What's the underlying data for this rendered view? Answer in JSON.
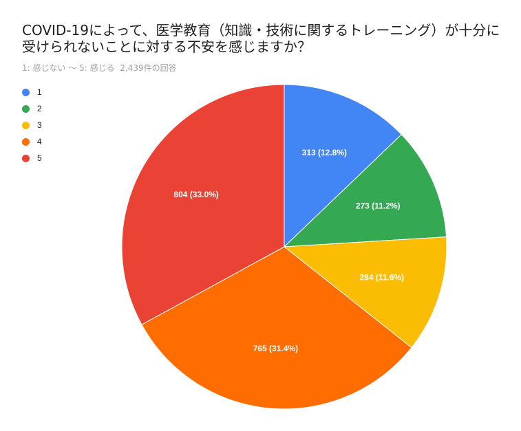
{
  "chart_data": {
    "type": "pie",
    "title": "COVID-19によって、医学教育（知識・技術に関するトレーニング）が十分に受けられないことに対する不安を感じますか？",
    "subtitle": "1: 感じない 〜 5: 感じる",
    "response_count": "2,439件の回答",
    "categories": [
      "1",
      "2",
      "3",
      "4",
      "5"
    ],
    "values": [
      313,
      273,
      284,
      765,
      804
    ],
    "percent_labels": [
      "12.8%",
      "11.2%",
      "11.6%",
      "31.4%",
      "33.0%"
    ],
    "colors": [
      "#4285f4",
      "#34a853",
      "#fbbc04",
      "#ff6d01",
      "#ea4335"
    ],
    "legend_position": "top-left"
  }
}
